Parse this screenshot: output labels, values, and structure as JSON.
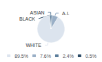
{
  "chart_data": {
    "type": "pie",
    "categories": [
      "WHITE",
      "A.I.",
      "ASIAN",
      "BLACK"
    ],
    "values": [
      89.5,
      7.6,
      2.4,
      0.5
    ],
    "value_labels": [
      "89.5%",
      "7.6%",
      "2.4%",
      "0.5%"
    ],
    "colors": [
      "#dce4ee",
      "#99afc6",
      "#5b7d9b",
      "#2b4a65"
    ],
    "legend": "bottom"
  }
}
